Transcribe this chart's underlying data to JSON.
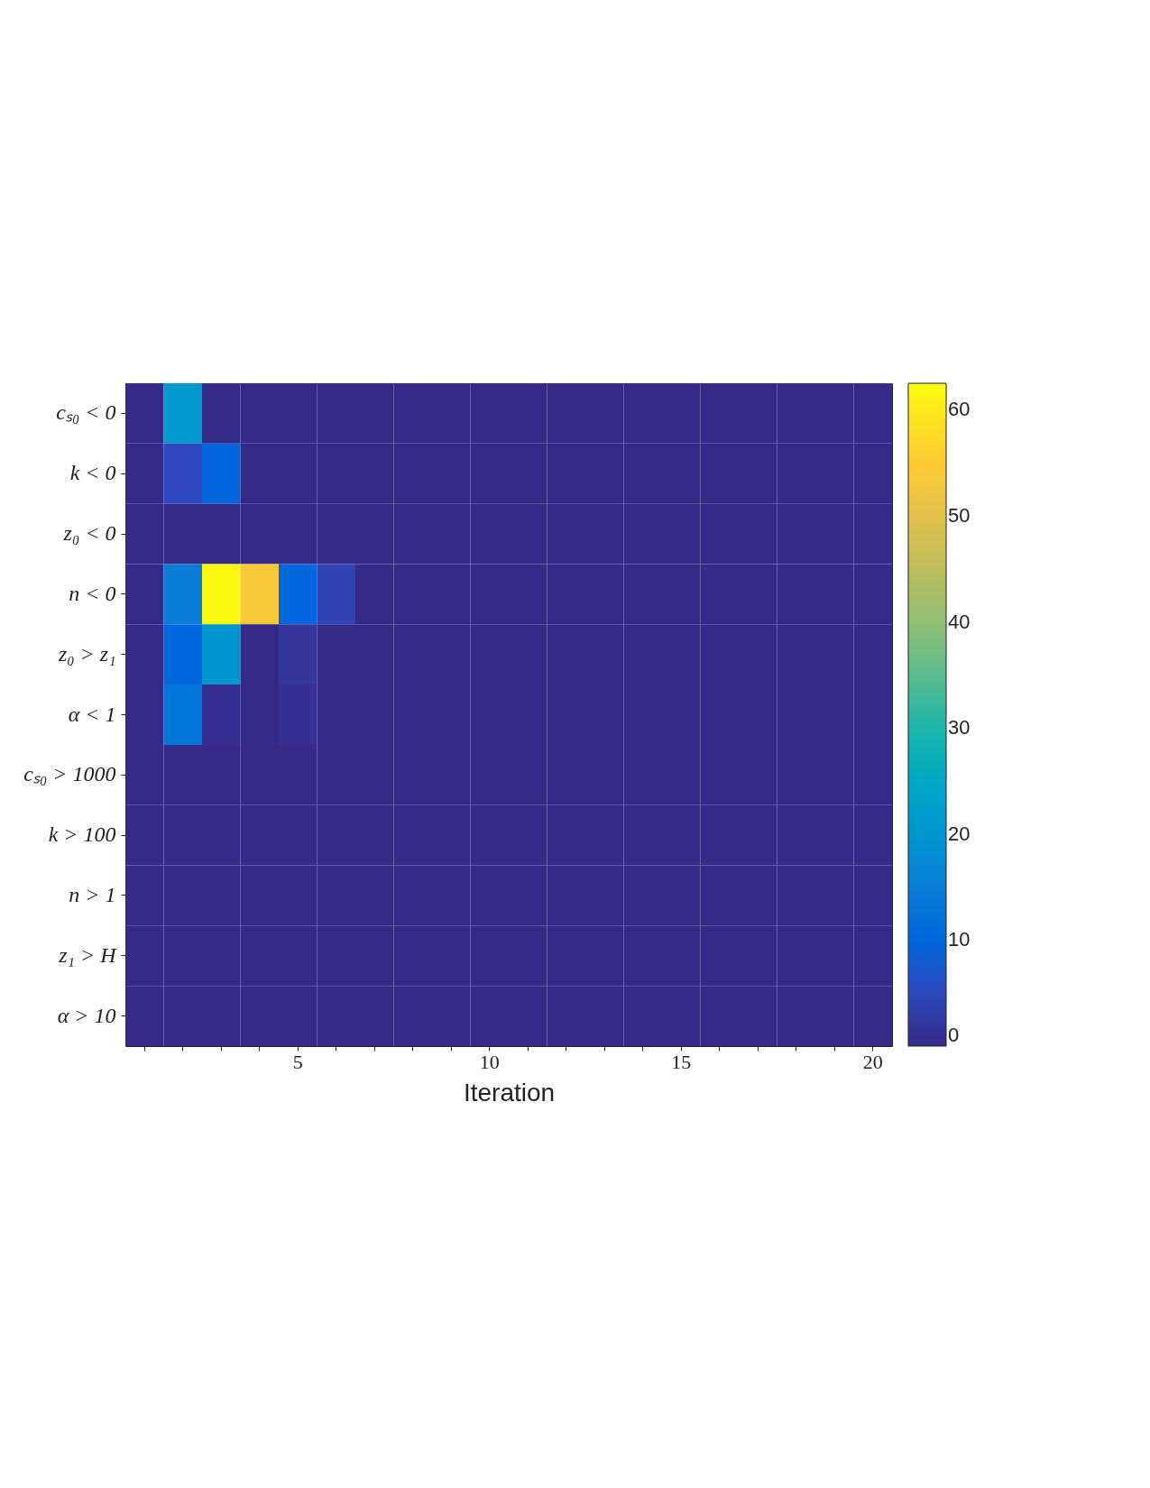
{
  "chart_data": {
    "type": "heatmap",
    "xlabel": "Iteration",
    "categories": [
      null,
      null,
      null,
      null,
      "5",
      null,
      null,
      null,
      null,
      "10",
      null,
      null,
      null,
      null,
      "15",
      null,
      null,
      null,
      null,
      "20"
    ],
    "y_categories": [
      "cₛ₀ < 0",
      "k < 0",
      "z₀ < 0",
      "n < 0",
      "z₀ > z₁",
      "α < 1",
      "cₛ₀ > 1000",
      "k > 100",
      "n > 1",
      "z₁ > H",
      "α > 10"
    ],
    "cells": [
      [
        0,
        21,
        0,
        0,
        0,
        0,
        0,
        0,
        0,
        0,
        0,
        0,
        0,
        0,
        0,
        0,
        0,
        0,
        0,
        0
      ],
      [
        0,
        5,
        10,
        0,
        0,
        0,
        0,
        0,
        0,
        0,
        0,
        0,
        0,
        0,
        0,
        0,
        0,
        0,
        0,
        0
      ],
      [
        0,
        0,
        0,
        0,
        0,
        0,
        0,
        0,
        0,
        0,
        0,
        0,
        0,
        0,
        0,
        0,
        0,
        0,
        0,
        0
      ],
      [
        0,
        15,
        62,
        54,
        10,
        4,
        0,
        0,
        0,
        0,
        0,
        0,
        0,
        0,
        0,
        0,
        0,
        0,
        0,
        0
      ],
      [
        0,
        10,
        20,
        0,
        2,
        0,
        0,
        0,
        0,
        0,
        0,
        0,
        0,
        0,
        0,
        0,
        0,
        0,
        0,
        0
      ],
      [
        0,
        13,
        1,
        0,
        1,
        0,
        0,
        0,
        0,
        0,
        0,
        0,
        0,
        0,
        0,
        0,
        0,
        0,
        0,
        0
      ],
      [
        0,
        0,
        0,
        0,
        0,
        0,
        0,
        0,
        0,
        0,
        0,
        0,
        0,
        0,
        0,
        0,
        0,
        0,
        0,
        0
      ],
      [
        0,
        0,
        0,
        0,
        0,
        0,
        0,
        0,
        0,
        0,
        0,
        0,
        0,
        0,
        0,
        0,
        0,
        0,
        0,
        0
      ],
      [
        0,
        0,
        0,
        0,
        0,
        0,
        0,
        0,
        0,
        0,
        0,
        0,
        0,
        0,
        0,
        0,
        0,
        0,
        0,
        0
      ],
      [
        0,
        0,
        0,
        0,
        0,
        0,
        0,
        0,
        0,
        0,
        0,
        0,
        0,
        0,
        0,
        0,
        0,
        0,
        0,
        0
      ],
      [
        0,
        0,
        0,
        0,
        0,
        0,
        0,
        0,
        0,
        0,
        0,
        0,
        0,
        0,
        0,
        0,
        0,
        0,
        0,
        0
      ]
    ],
    "clim": [
      0,
      62.5
    ],
    "cticks": [
      0,
      10,
      20,
      30,
      40,
      50,
      60
    ]
  }
}
